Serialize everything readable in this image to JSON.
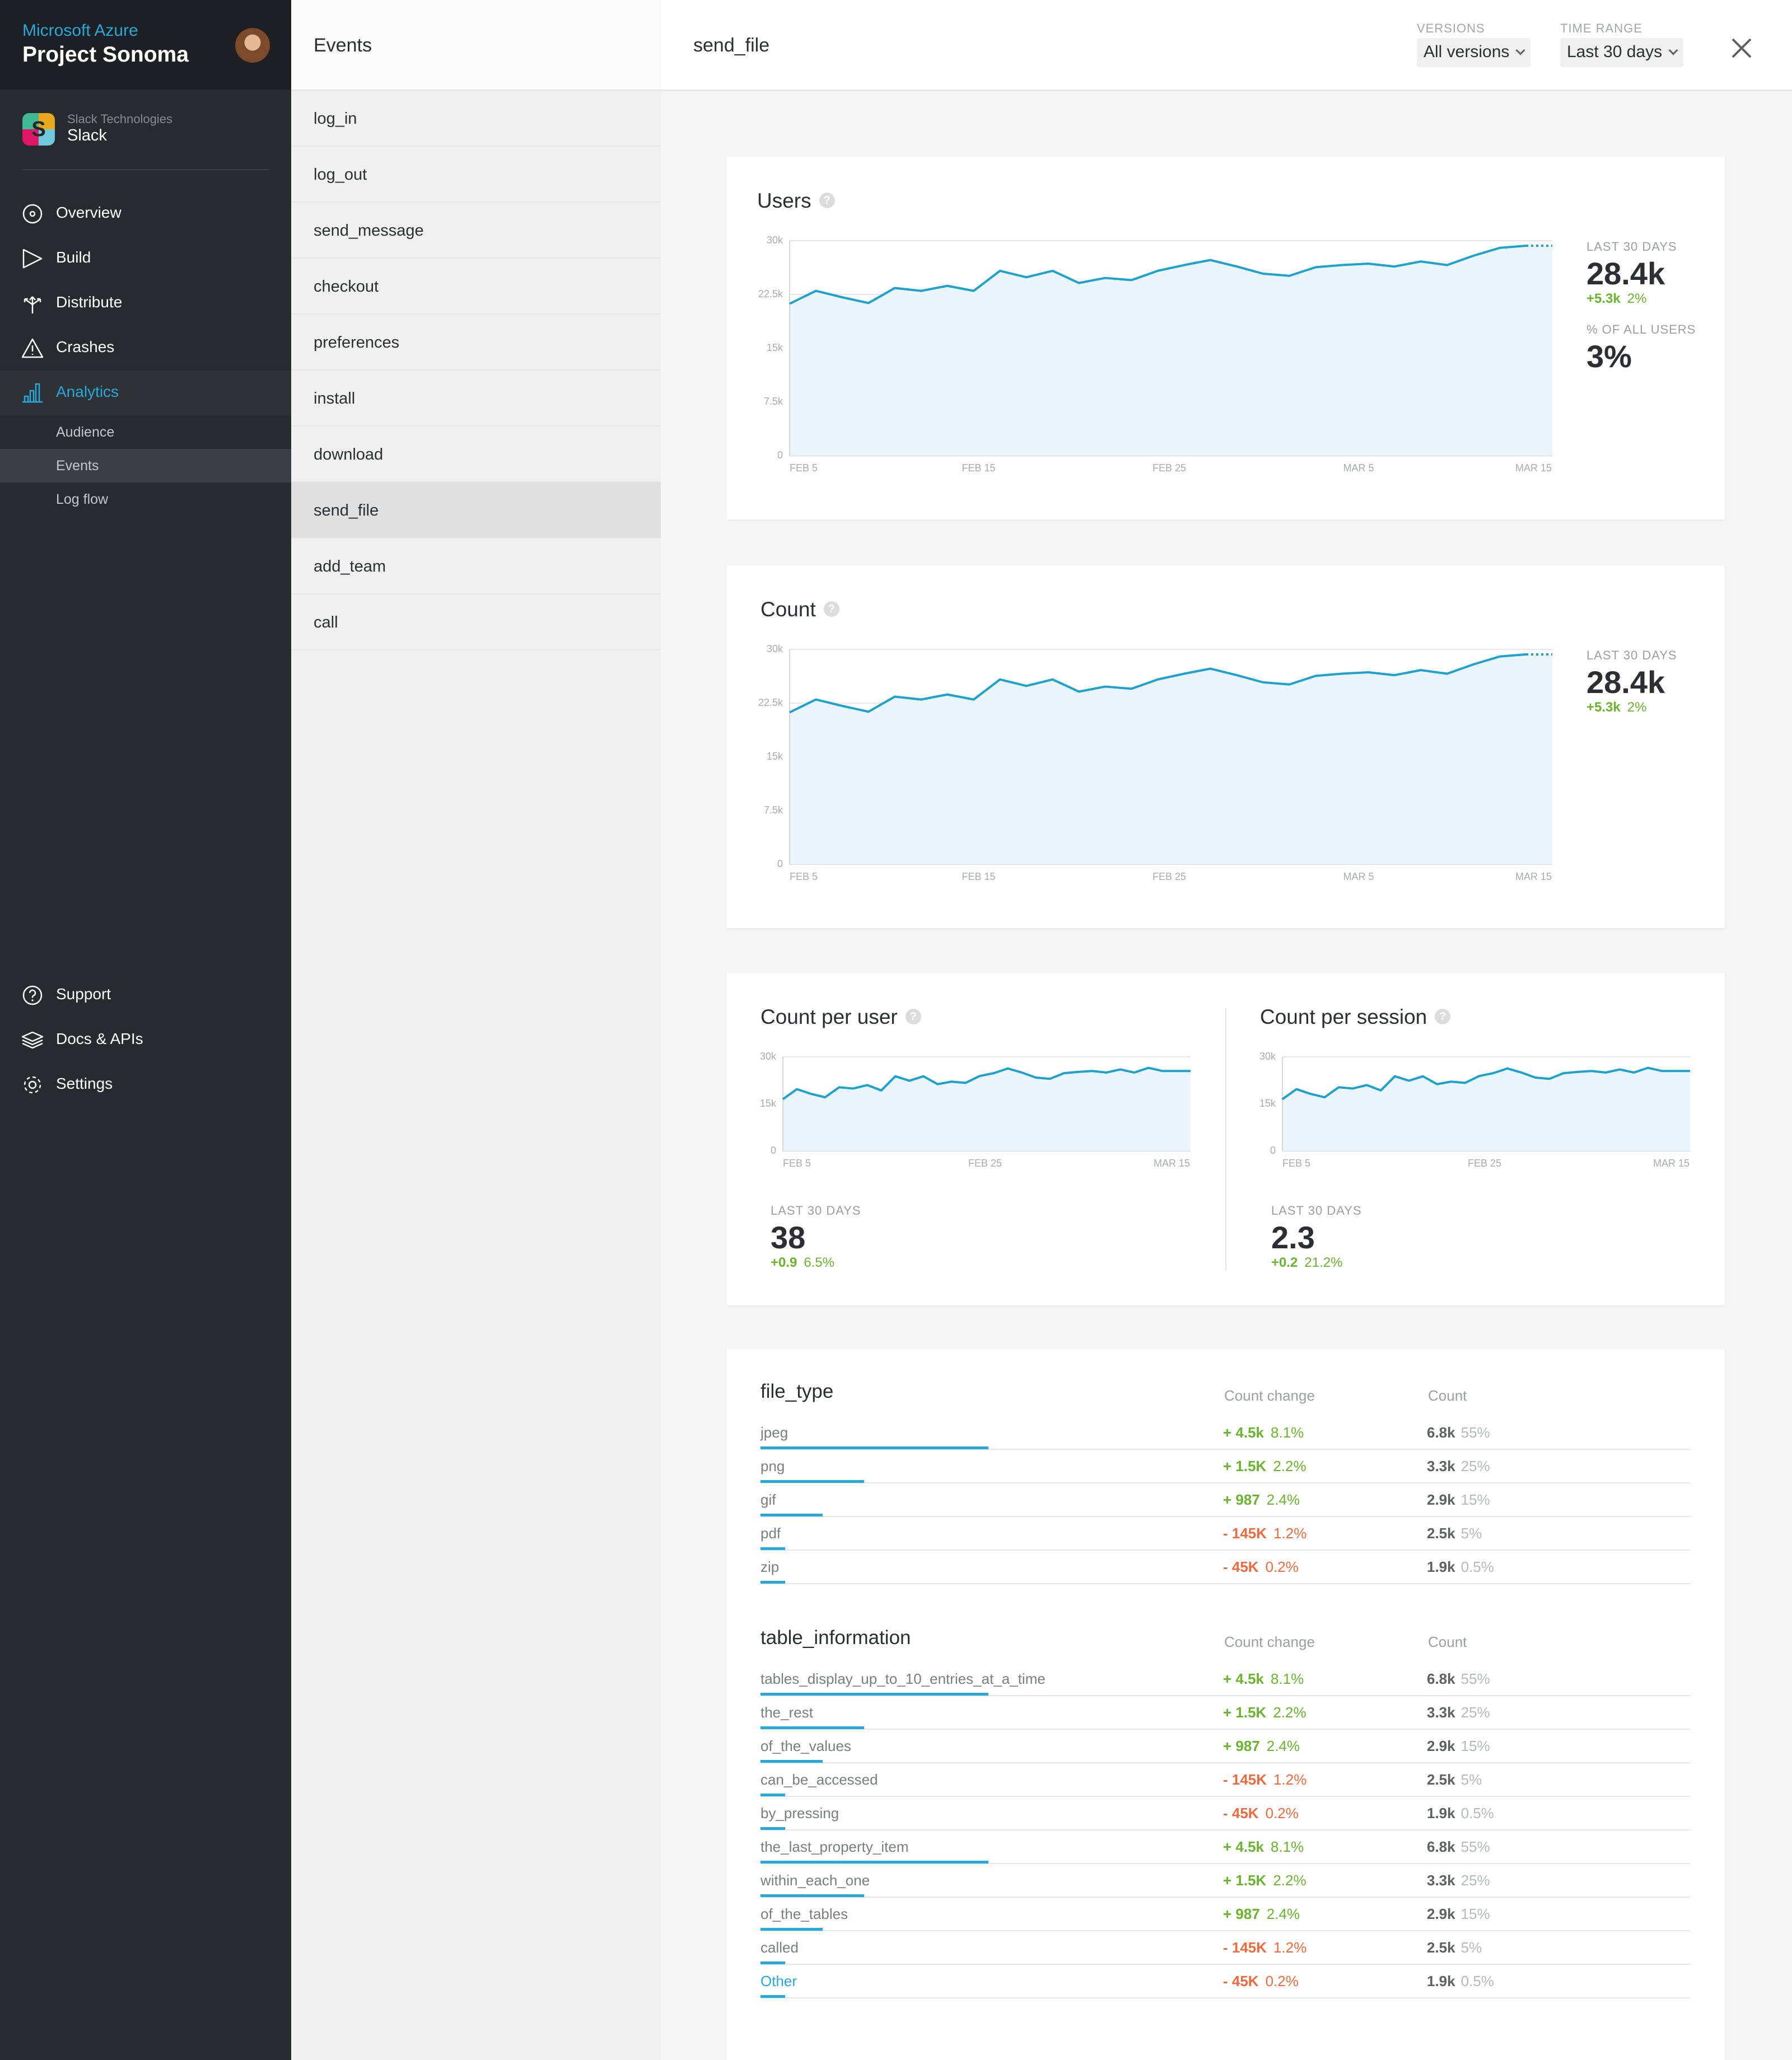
{
  "sidebar": {
    "brand": "Microsoft Azure",
    "project": "Project Sonoma",
    "app": {
      "company": "Slack Technologies",
      "name": "Slack",
      "icon_letter": "S"
    },
    "nav": [
      {
        "label": "Overview",
        "icon": "overview-icon"
      },
      {
        "label": "Build",
        "icon": "build-icon"
      },
      {
        "label": "Distribute",
        "icon": "distribute-icon"
      },
      {
        "label": "Crashes",
        "icon": "crashes-icon"
      },
      {
        "label": "Analytics",
        "icon": "analytics-icon",
        "active": true
      }
    ],
    "analytics_sub": [
      {
        "label": "Audience"
      },
      {
        "label": "Events",
        "active": true
      },
      {
        "label": "Log flow"
      }
    ],
    "bottom_nav": [
      {
        "label": "Support",
        "icon": "support-icon"
      },
      {
        "label": "Docs & APIs",
        "icon": "docs-icon"
      },
      {
        "label": "Settings",
        "icon": "settings-icon"
      }
    ]
  },
  "events": {
    "title": "Events",
    "items": [
      "log_in",
      "log_out",
      "send_message",
      "checkout",
      "preferences",
      "install",
      "download",
      "send_file",
      "add_team",
      "call"
    ],
    "selected": "send_file"
  },
  "main": {
    "title": "send_file",
    "versions": {
      "caption": "VERSIONS",
      "value": "All versions"
    },
    "time_range": {
      "caption": "TIME RANGE",
      "value": "Last 30 days"
    }
  },
  "users_card": {
    "title": "Users",
    "stat_caption": "LAST 30 DAYS",
    "stat_value": "28.4k",
    "stat_delta": "+5.3k",
    "stat_delta_pct": "2%",
    "share_caption": "% OF ALL USERS",
    "share_value": "3%"
  },
  "count_card": {
    "title": "Count",
    "stat_caption": "LAST 30 DAYS",
    "stat_value": "28.4k",
    "stat_delta": "+5.3k",
    "stat_delta_pct": "2%"
  },
  "per_user": {
    "title": "Count per user",
    "stat_caption": "LAST 30 DAYS",
    "stat_value": "38",
    "stat_delta": "+0.9",
    "stat_delta_pct": "6.5%"
  },
  "per_session": {
    "title": "Count per session",
    "stat_caption": "LAST 30 DAYS",
    "stat_value": "2.3",
    "stat_delta": "+0.2",
    "stat_delta_pct": "21.2%"
  },
  "chart_data": [
    {
      "type": "area",
      "name": "users",
      "ylim": [
        0,
        30000
      ],
      "y_ticks": [
        "30k",
        "22.5k",
        "15k",
        "7.5k",
        "0"
      ],
      "x_ticks": [
        "FEB 5",
        "FEB 15",
        "FEB 25",
        "MAR 5",
        "MAR 15"
      ],
      "values": [
        21200,
        23000,
        22100,
        21300,
        23400,
        23000,
        23700,
        23000,
        25800,
        24900,
        25800,
        24100,
        24800,
        24500,
        25800,
        26600,
        27300,
        26400,
        25400,
        25100,
        26300,
        26600,
        26800,
        26400,
        27100,
        26600,
        27900,
        29000,
        29300,
        29300
      ]
    },
    {
      "type": "area",
      "name": "count",
      "ylim": [
        0,
        30000
      ],
      "y_ticks": [
        "30k",
        "22.5k",
        "15k",
        "7.5k",
        "0"
      ],
      "x_ticks": [
        "FEB 5",
        "FEB 15",
        "FEB 25",
        "MAR 5",
        "MAR 15"
      ],
      "values": [
        21200,
        23000,
        22100,
        21300,
        23400,
        23000,
        23700,
        23000,
        25800,
        24900,
        25800,
        24100,
        24800,
        24500,
        25800,
        26600,
        27300,
        26400,
        25400,
        25100,
        26300,
        26600,
        26800,
        26400,
        27100,
        26600,
        27900,
        29000,
        29300,
        29300
      ]
    },
    {
      "type": "area",
      "name": "count_per_user",
      "ylim": [
        0,
        30000
      ],
      "y_ticks": [
        "30k",
        "15k",
        "0"
      ],
      "x_ticks": [
        "FEB 5",
        "FEB 25",
        "MAR 15"
      ],
      "values": [
        16500,
        19700,
        18200,
        17100,
        20300,
        19900,
        21000,
        19300,
        23800,
        22400,
        23800,
        21300,
        22100,
        21700,
        23900,
        24800,
        26300,
        25000,
        23400,
        23000,
        24800,
        25200,
        25500,
        25000,
        26000,
        25000,
        26500,
        25500,
        25500,
        25500
      ]
    },
    {
      "type": "area",
      "name": "count_per_session",
      "ylim": [
        0,
        30000
      ],
      "y_ticks": [
        "30k",
        "15k",
        "0"
      ],
      "x_ticks": [
        "FEB 5",
        "FEB 25",
        "MAR 15"
      ],
      "values": [
        16500,
        19700,
        18200,
        17100,
        20300,
        19900,
        21000,
        19300,
        23800,
        22400,
        23800,
        21300,
        22100,
        21700,
        23900,
        24800,
        26300,
        25000,
        23400,
        23000,
        24800,
        25200,
        25500,
        25000,
        26000,
        25000,
        26500,
        25500,
        25500,
        25500
      ]
    }
  ],
  "tables": [
    {
      "title": "file_type",
      "col_change": "Count change",
      "col_count": "Count",
      "rows": [
        {
          "name": "jpeg",
          "share": 0.55,
          "change": "+ 4.5k",
          "change_pct": "8.1%",
          "dir": "pos",
          "count": "6.8k",
          "count_pct": "55%"
        },
        {
          "name": "png",
          "share": 0.25,
          "change": "+ 1.5K",
          "change_pct": "2.2%",
          "dir": "pos",
          "count": "3.3k",
          "count_pct": "25%"
        },
        {
          "name": "gif",
          "share": 0.15,
          "change": "+ 987",
          "change_pct": "2.4%",
          "dir": "pos",
          "count": "2.9k",
          "count_pct": "15%"
        },
        {
          "name": "pdf",
          "share": 0.05,
          "change": "- 145K",
          "change_pct": "1.2%",
          "dir": "neg",
          "count": "2.5k",
          "count_pct": "5%"
        },
        {
          "name": "zip",
          "share": 0.005,
          "change": "- 45K",
          "change_pct": "0.2%",
          "dir": "neg",
          "count": "1.9k",
          "count_pct": "0.5%"
        }
      ]
    },
    {
      "title": "table_information",
      "col_change": "Count change",
      "col_count": "Count",
      "rows": [
        {
          "name": "tables_display_up_to_10_entries_at_a_time",
          "share": 0.55,
          "change": "+ 4.5k",
          "change_pct": "8.1%",
          "dir": "pos",
          "count": "6.8k",
          "count_pct": "55%"
        },
        {
          "name": "the_rest",
          "share": 0.25,
          "change": "+ 1.5K",
          "change_pct": "2.2%",
          "dir": "pos",
          "count": "3.3k",
          "count_pct": "25%"
        },
        {
          "name": "of_the_values",
          "share": 0.15,
          "change": "+ 987",
          "change_pct": "2.4%",
          "dir": "pos",
          "count": "2.9k",
          "count_pct": "15%"
        },
        {
          "name": "can_be_accessed",
          "share": 0.05,
          "change": "- 145K",
          "change_pct": "1.2%",
          "dir": "neg",
          "count": "2.5k",
          "count_pct": "5%"
        },
        {
          "name": "by_pressing",
          "share": 0.005,
          "change": "- 45K",
          "change_pct": "0.2%",
          "dir": "neg",
          "count": "1.9k",
          "count_pct": "0.5%"
        },
        {
          "name": "the_last_property_item",
          "share": 0.55,
          "change": "+ 4.5k",
          "change_pct": "8.1%",
          "dir": "pos",
          "count": "6.8k",
          "count_pct": "55%"
        },
        {
          "name": "within_each_one",
          "share": 0.25,
          "change": "+ 1.5K",
          "change_pct": "2.2%",
          "dir": "pos",
          "count": "3.3k",
          "count_pct": "25%"
        },
        {
          "name": "of_the_tables",
          "share": 0.15,
          "change": "+ 987",
          "change_pct": "2.4%",
          "dir": "pos",
          "count": "2.9k",
          "count_pct": "15%"
        },
        {
          "name": "called",
          "share": 0.05,
          "change": "- 145K",
          "change_pct": "1.2%",
          "dir": "neg",
          "count": "2.5k",
          "count_pct": "5%"
        },
        {
          "name": "Other",
          "share": 0.005,
          "change": "- 45K",
          "change_pct": "0.2%",
          "dir": "neg",
          "count": "1.9k",
          "count_pct": "0.5%",
          "link": true
        }
      ]
    }
  ],
  "colors": {
    "accent": "#27a8d8",
    "positive": "#6ab42e",
    "negative": "#ef6a3c",
    "sidebar": "#272a2e"
  }
}
